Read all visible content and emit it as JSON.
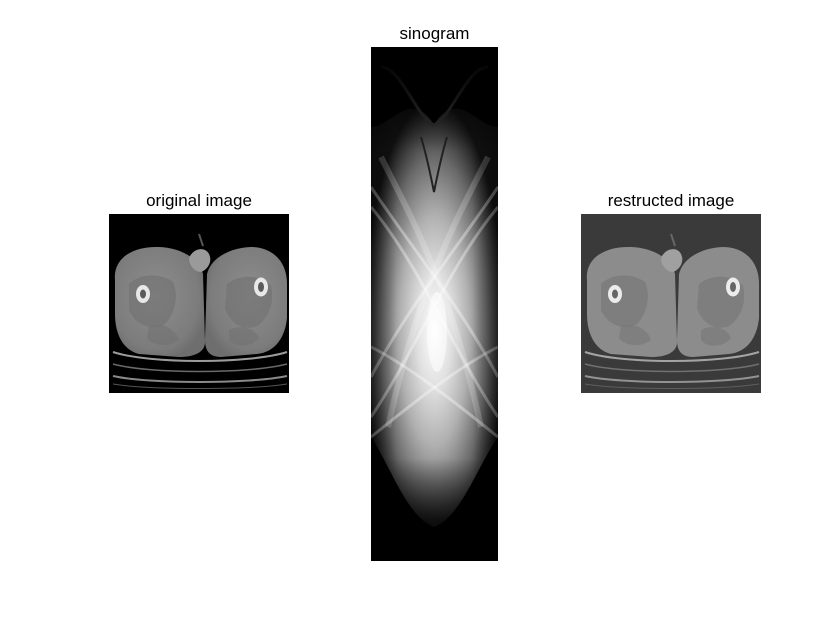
{
  "panels": {
    "original": {
      "title": "original image"
    },
    "sinogram": {
      "title": "sinogram"
    },
    "reconstructed": {
      "title": "restructed image"
    }
  },
  "colors": {
    "background": "#ffffff",
    "original_bg": "#000000",
    "reconstructed_bg": "#3a3a3a",
    "tissue": "#8a8a8a",
    "bone": "#e8e8e8"
  }
}
